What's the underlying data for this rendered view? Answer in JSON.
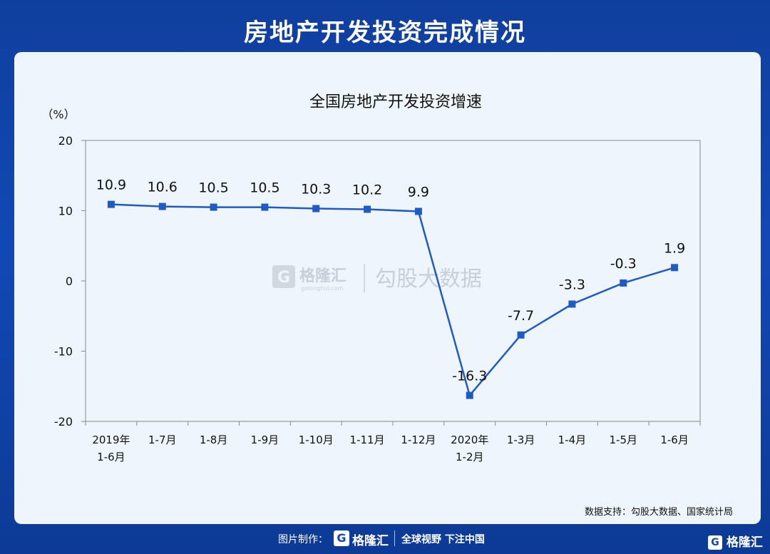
{
  "banner": {
    "title": "房地产开发投资完成情况"
  },
  "chart_data": {
    "type": "line",
    "title": "全国房地产开发投资增速",
    "unit_label": "（%）",
    "categories": [
      [
        "2019年",
        "1-6月"
      ],
      [
        "1-7月"
      ],
      [
        "1-8月"
      ],
      [
        "1-9月"
      ],
      [
        "1-10月"
      ],
      [
        "1-11月"
      ],
      [
        "1-12月"
      ],
      [
        "2020年",
        "1-2月"
      ],
      [
        "1-3月"
      ],
      [
        "1-4月"
      ],
      [
        "1-5月"
      ],
      [
        "1-6月"
      ]
    ],
    "series": [
      {
        "values": [
          10.9,
          10.6,
          10.5,
          10.5,
          10.3,
          10.2,
          9.9,
          -16.3,
          -7.7,
          -3.3,
          -0.3,
          1.9
        ]
      }
    ],
    "data_labels": [
      "10.9",
      "10.6",
      "10.5",
      "10.5",
      "10.3",
      "10.2",
      "9.9",
      "-16.3",
      "-7.7",
      "-3.3",
      "-0.3",
      "1.9"
    ],
    "ylim": [
      -20,
      20
    ],
    "yticks": [
      20,
      10,
      0,
      -10,
      -20
    ],
    "ytick_labels": [
      "20",
      "10",
      "0",
      "-10",
      "-20"
    ],
    "grid": false,
    "line_color": "#1f5bc4"
  },
  "watermark": {
    "brand": "格隆汇",
    "site": "gelonghui.com",
    "partner": "勾股大数据"
  },
  "source": "数据支持：勾股大数据、国家统计局",
  "footer": {
    "made_by": "图片制作：",
    "logo_letter": "G",
    "brand": "格隆汇",
    "slogan": "全球视野 下注中国"
  },
  "corner_logo": {
    "letter": "G",
    "brand": "格隆汇"
  }
}
